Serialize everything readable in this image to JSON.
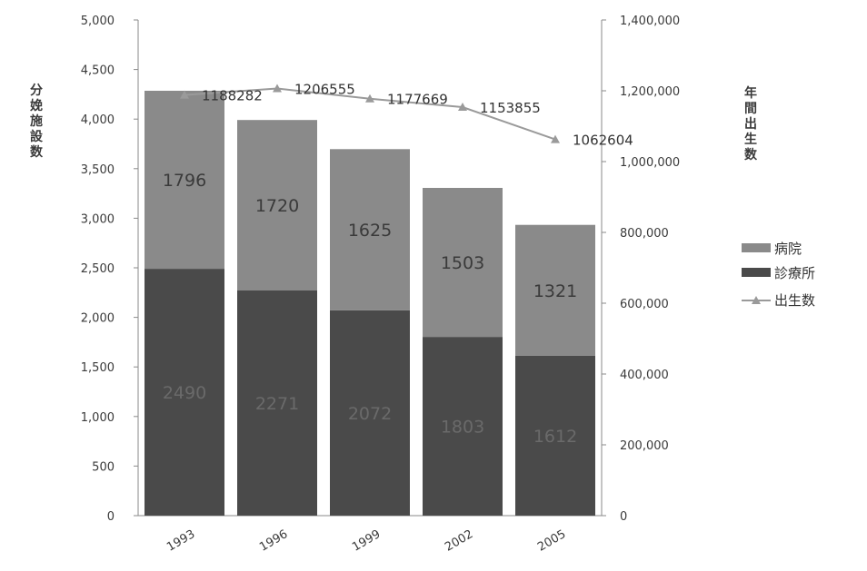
{
  "chart_data": {
    "type": "bar",
    "stacked": true,
    "categories": [
      "1993",
      "1996",
      "1999",
      "2002",
      "2005"
    ],
    "series": [
      {
        "name": "診療所",
        "type": "bar",
        "axis": "left",
        "values": [
          2490,
          2271,
          2072,
          1803,
          1612
        ],
        "color": "#4a4a4a",
        "label_color": "#6a6a6a"
      },
      {
        "name": "病院",
        "type": "bar",
        "axis": "left",
        "values": [
          1796,
          1720,
          1625,
          1503,
          1321
        ],
        "color": "#8a8a8a",
        "label_color": "#3a3a3a"
      },
      {
        "name": "出生数",
        "type": "line",
        "axis": "right",
        "values": [
          1188282,
          1206555,
          1177669,
          1153855,
          1062604
        ],
        "color": "#9a9a9a"
      }
    ],
    "y_left": {
      "label": "分娩施設数",
      "ylim": [
        0,
        5000
      ],
      "ticks": [
        0,
        500,
        1000,
        1500,
        2000,
        2500,
        3000,
        3500,
        4000,
        4500,
        5000
      ],
      "tick_labels": [
        "0",
        "500",
        "1,000",
        "1,500",
        "2,000",
        "2,500",
        "3,000",
        "3,500",
        "4,000",
        "4,500",
        "5,000"
      ]
    },
    "y_right": {
      "label": "年間出生数",
      "ylim": [
        0,
        1400000
      ],
      "ticks": [
        0,
        200000,
        400000,
        600000,
        800000,
        1000000,
        1200000,
        1400000
      ],
      "tick_labels": [
        "0",
        "200,000",
        "400,000",
        "600,000",
        "800,000",
        "1,000,000",
        "1,200,000",
        "1,400,000"
      ]
    },
    "legend": {
      "position": "right",
      "entries": [
        "病院",
        "診療所",
        "出生数"
      ]
    },
    "grid": false,
    "title": ""
  }
}
